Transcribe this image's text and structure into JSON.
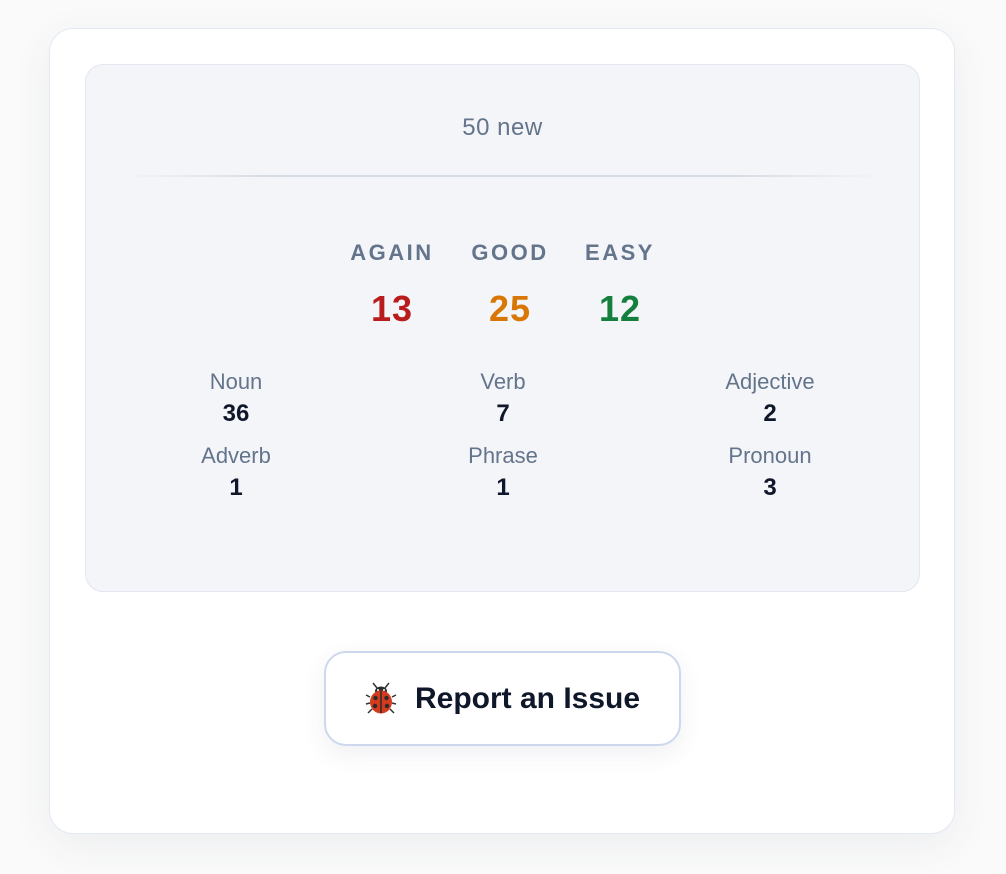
{
  "summary": {
    "new_label": "50 new"
  },
  "ratings": [
    {
      "label": "AGAIN",
      "value": "13",
      "color": "#b91c1c"
    },
    {
      "label": "GOOD",
      "value": "25",
      "color": "#d97706"
    },
    {
      "label": "EASY",
      "value": "12",
      "color": "#15803d"
    }
  ],
  "parts_of_speech": [
    {
      "label": "Noun",
      "count": "36"
    },
    {
      "label": "Verb",
      "count": "7"
    },
    {
      "label": "Adjective",
      "count": "2"
    },
    {
      "label": "Adverb",
      "count": "1"
    },
    {
      "label": "Phrase",
      "count": "1"
    },
    {
      "label": "Pronoun",
      "count": "3"
    }
  ],
  "report": {
    "label": "Report an Issue",
    "icon": "ladybug-icon"
  }
}
